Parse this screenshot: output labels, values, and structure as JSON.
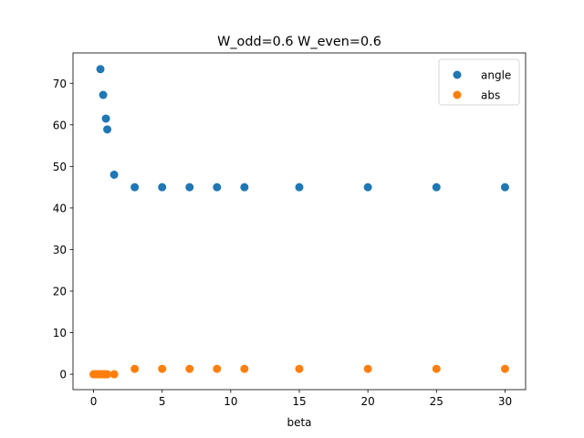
{
  "chart_data": {
    "type": "scatter",
    "title": "W_odd=0.6 W_even=0.6",
    "xlabel": "beta",
    "ylabel": "",
    "xlim": [
      -1.5,
      31.5
    ],
    "ylim": [
      -3.7,
      77.3
    ],
    "xticks": [
      0,
      5,
      10,
      15,
      20,
      25,
      30
    ],
    "yticks": [
      0,
      10,
      20,
      30,
      40,
      50,
      60,
      70
    ],
    "grid": false,
    "legend_position": "top-right",
    "series": [
      {
        "name": "angle",
        "color": "#1f77b4",
        "points": [
          [
            0.5,
            73.4
          ],
          [
            0.7,
            67.2
          ],
          [
            0.9,
            61.5
          ],
          [
            1.0,
            58.9
          ],
          [
            1.5,
            48.0
          ],
          [
            3,
            45.0
          ],
          [
            5,
            45.0
          ],
          [
            7,
            45.0
          ],
          [
            9,
            45.0
          ],
          [
            11,
            45.0
          ],
          [
            15,
            45.0
          ],
          [
            20,
            45.0
          ],
          [
            25,
            45.0
          ],
          [
            30,
            45.0
          ]
        ]
      },
      {
        "name": "abs",
        "color": "#ff7f0e",
        "points": [
          [
            0.0,
            0.0
          ],
          [
            0.1,
            0.0
          ],
          [
            0.2,
            0.0
          ],
          [
            0.3,
            0.0
          ],
          [
            0.4,
            0.0
          ],
          [
            0.5,
            0.0
          ],
          [
            0.6,
            0.0
          ],
          [
            0.7,
            0.0
          ],
          [
            0.8,
            0.0
          ],
          [
            0.9,
            0.0
          ],
          [
            1.0,
            0.0
          ],
          [
            1.5,
            0.0
          ],
          [
            3,
            1.3
          ],
          [
            5,
            1.3
          ],
          [
            7,
            1.3
          ],
          [
            9,
            1.3
          ],
          [
            11,
            1.3
          ],
          [
            15,
            1.3
          ],
          [
            20,
            1.3
          ],
          [
            25,
            1.3
          ],
          [
            30,
            1.3
          ]
        ]
      }
    ]
  }
}
